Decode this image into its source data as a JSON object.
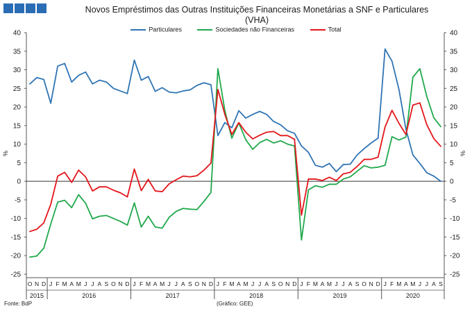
{
  "logo": {
    "name": "bdp-logo",
    "squares": 4
  },
  "footer": {
    "source": "Fonte: BdP",
    "note": "(Gráfico: GEE)"
  },
  "chart_data": {
    "type": "line",
    "title": "Novos Empréstimos das Outras Instituições Financeiras Monetárias a SNF e Particulares",
    "subtitle": "(VHA)",
    "ylabel": "%",
    "ylim": [
      -25,
      40
    ],
    "yticks": [
      -25,
      -20,
      -15,
      -10,
      -5,
      0,
      5,
      10,
      15,
      20,
      25,
      30,
      35,
      40
    ],
    "grid": false,
    "legend": "top-center",
    "x": [
      "O",
      "N",
      "D",
      "J",
      "F",
      "M",
      "A",
      "M",
      "J",
      "J",
      "A",
      "S",
      "O",
      "N",
      "D",
      "J",
      "F",
      "M",
      "A",
      "M",
      "J",
      "J",
      "A",
      "S",
      "O",
      "N",
      "D",
      "J",
      "F",
      "M",
      "A",
      "M",
      "J",
      "J",
      "A",
      "S",
      "O",
      "N",
      "D",
      "J",
      "F",
      "M",
      "A",
      "M",
      "J",
      "J",
      "A",
      "S",
      "O",
      "N",
      "D",
      "J",
      "F",
      "M",
      "A",
      "M",
      "J",
      "J",
      "A",
      "S"
    ],
    "years": [
      {
        "label": "2015",
        "start": 0,
        "end": 2
      },
      {
        "label": "2016",
        "start": 3,
        "end": 14
      },
      {
        "label": "2017",
        "start": 15,
        "end": 26
      },
      {
        "label": "2018",
        "start": 27,
        "end": 38
      },
      {
        "label": "2019",
        "start": 39,
        "end": 50
      },
      {
        "label": "2020",
        "start": 51,
        "end": 59
      }
    ],
    "series": [
      {
        "name": "Particulares",
        "color": "#2f74b5",
        "values": [
          26.2,
          27.9,
          27.4,
          21.0,
          31.0,
          31.7,
          26.7,
          28.5,
          29.4,
          26.2,
          27.2,
          26.7,
          25.0,
          24.3,
          23.6,
          32.6,
          27.2,
          28.2,
          24.2,
          25.2,
          24.0,
          23.8,
          24.3,
          24.6,
          25.8,
          26.5,
          26.0,
          12.3,
          15.8,
          14.4,
          19.0,
          17.0,
          18.0,
          18.8,
          18.0,
          16.1,
          15.2,
          13.6,
          12.9,
          9.5,
          7.8,
          4.3,
          3.8,
          4.8,
          2.6,
          4.5,
          4.6,
          7.1,
          8.8,
          10.3,
          11.6,
          35.6,
          32.3,
          24.7,
          14.0,
          7.1,
          4.8,
          2.3,
          1.4,
          0.0
        ]
      },
      {
        "name": "Sociedades não Financeiras",
        "color": "#1fa84b",
        "values": [
          -20.4,
          -20.1,
          -18.0,
          -11.5,
          -5.6,
          -5.1,
          -7.1,
          -3.6,
          -5.9,
          -10.1,
          -9.4,
          -9.2,
          -10.0,
          -10.8,
          -11.8,
          -5.8,
          -12.3,
          -9.4,
          -12.3,
          -12.6,
          -9.7,
          -8.1,
          -7.3,
          -7.5,
          -7.6,
          -5.4,
          -3.0,
          30.3,
          19.0,
          11.6,
          15.7,
          11.2,
          8.6,
          10.4,
          11.3,
          10.3,
          10.9,
          10.0,
          9.5,
          -15.8,
          -2.3,
          -1.2,
          -1.6,
          -0.8,
          -0.8,
          0.6,
          1.2,
          2.7,
          4.2,
          3.6,
          3.8,
          4.3,
          12.0,
          11.1,
          11.9,
          28.0,
          30.3,
          22.8,
          17.1,
          14.7
        ]
      },
      {
        "name": "Total",
        "color": "#e3151a",
        "values": [
          -13.5,
          -12.9,
          -11.2,
          -6.2,
          1.4,
          2.4,
          -0.3,
          3.0,
          1.2,
          -2.6,
          -1.5,
          -1.5,
          -2.4,
          -3.1,
          -4.2,
          3.3,
          -2.5,
          0.5,
          -2.6,
          -2.8,
          -0.7,
          0.4,
          1.4,
          1.2,
          1.5,
          3.0,
          4.9,
          24.7,
          18.0,
          12.6,
          15.8,
          13.2,
          11.4,
          12.4,
          13.2,
          13.4,
          12.3,
          12.3,
          11.3,
          -9.1,
          0.6,
          0.6,
          0.2,
          1.1,
          0.2,
          2.0,
          2.4,
          4.0,
          5.9,
          5.9,
          6.5,
          14.6,
          19.1,
          15.6,
          12.6,
          20.5,
          21.1,
          15.2,
          11.5,
          9.4
        ]
      }
    ]
  }
}
